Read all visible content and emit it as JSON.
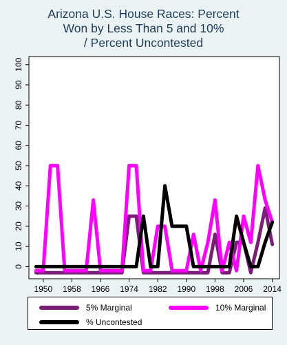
{
  "chart_data": {
    "type": "line",
    "title_lines": [
      "Arizona U.S. House Races: Percent",
      "Won by Less Than 5 and 10%",
      "/ Percent Uncontested"
    ],
    "xlabel": "",
    "ylabel": "",
    "x_ticks": [
      1950,
      1958,
      1966,
      1974,
      1982,
      1990,
      1998,
      2006,
      2014
    ],
    "y_ticks": [
      0,
      10,
      20,
      30,
      40,
      50,
      60,
      70,
      80,
      90,
      100
    ],
    "xlim": [
      1946,
      2016
    ],
    "ylim": [
      -6,
      104
    ],
    "grid": false,
    "legend_position": "bottom",
    "series": [
      {
        "name": "5% Marginal",
        "color": "#7b1e7a",
        "x": [
          1948,
          1950,
          1952,
          1954,
          1956,
          1958,
          1960,
          1962,
          1964,
          1966,
          1968,
          1970,
          1972,
          1974,
          1976,
          1978,
          1980,
          1982,
          1984,
          1986,
          1988,
          1990,
          1992,
          1994,
          1996,
          1998,
          2000,
          2002,
          2004,
          2006,
          2008,
          2010,
          2012,
          2014
        ],
        "values": [
          -3,
          -3,
          -3,
          -3,
          -3,
          -3,
          -3,
          -3,
          -3,
          -3,
          -3,
          -3,
          -3,
          25,
          25,
          -3,
          -3,
          -3,
          -3,
          -3,
          -3,
          -3,
          -3,
          -3,
          -3,
          16,
          -3,
          -3,
          12,
          12,
          -3,
          12,
          29,
          11
        ]
      },
      {
        "name": "10% Marginal",
        "color": "#ff00ff",
        "x": [
          1948,
          1950,
          1952,
          1954,
          1956,
          1958,
          1960,
          1962,
          1964,
          1966,
          1968,
          1970,
          1972,
          1974,
          1976,
          1978,
          1980,
          1982,
          1984,
          1986,
          1988,
          1990,
          1992,
          1994,
          1996,
          1998,
          2000,
          2002,
          2004,
          2006,
          2008,
          2010,
          2012,
          2014
        ],
        "values": [
          -2,
          -2,
          50,
          50,
          -2,
          -2,
          -2,
          -2,
          33,
          -2,
          -2,
          -2,
          -2,
          50,
          50,
          -2,
          -2,
          20,
          20,
          -2,
          -2,
          -2,
          16,
          -2,
          12,
          33,
          -2,
          12,
          -2,
          25,
          12,
          50,
          33,
          22
        ]
      },
      {
        "name": "% Uncontested",
        "color": "#000000",
        "x": [
          1948,
          1950,
          1952,
          1954,
          1956,
          1958,
          1960,
          1962,
          1964,
          1966,
          1968,
          1970,
          1972,
          1974,
          1976,
          1978,
          1980,
          1982,
          1984,
          1986,
          1988,
          1990,
          1992,
          1994,
          1996,
          1998,
          2000,
          2002,
          2004,
          2006,
          2008,
          2010,
          2012,
          2014
        ],
        "values": [
          0,
          0,
          0,
          0,
          0,
          0,
          0,
          0,
          0,
          0,
          0,
          0,
          0,
          0,
          0,
          25,
          0,
          0,
          40,
          20,
          20,
          20,
          0,
          0,
          0,
          0,
          0,
          0,
          25,
          12,
          0,
          0,
          12,
          22
        ]
      }
    ]
  }
}
